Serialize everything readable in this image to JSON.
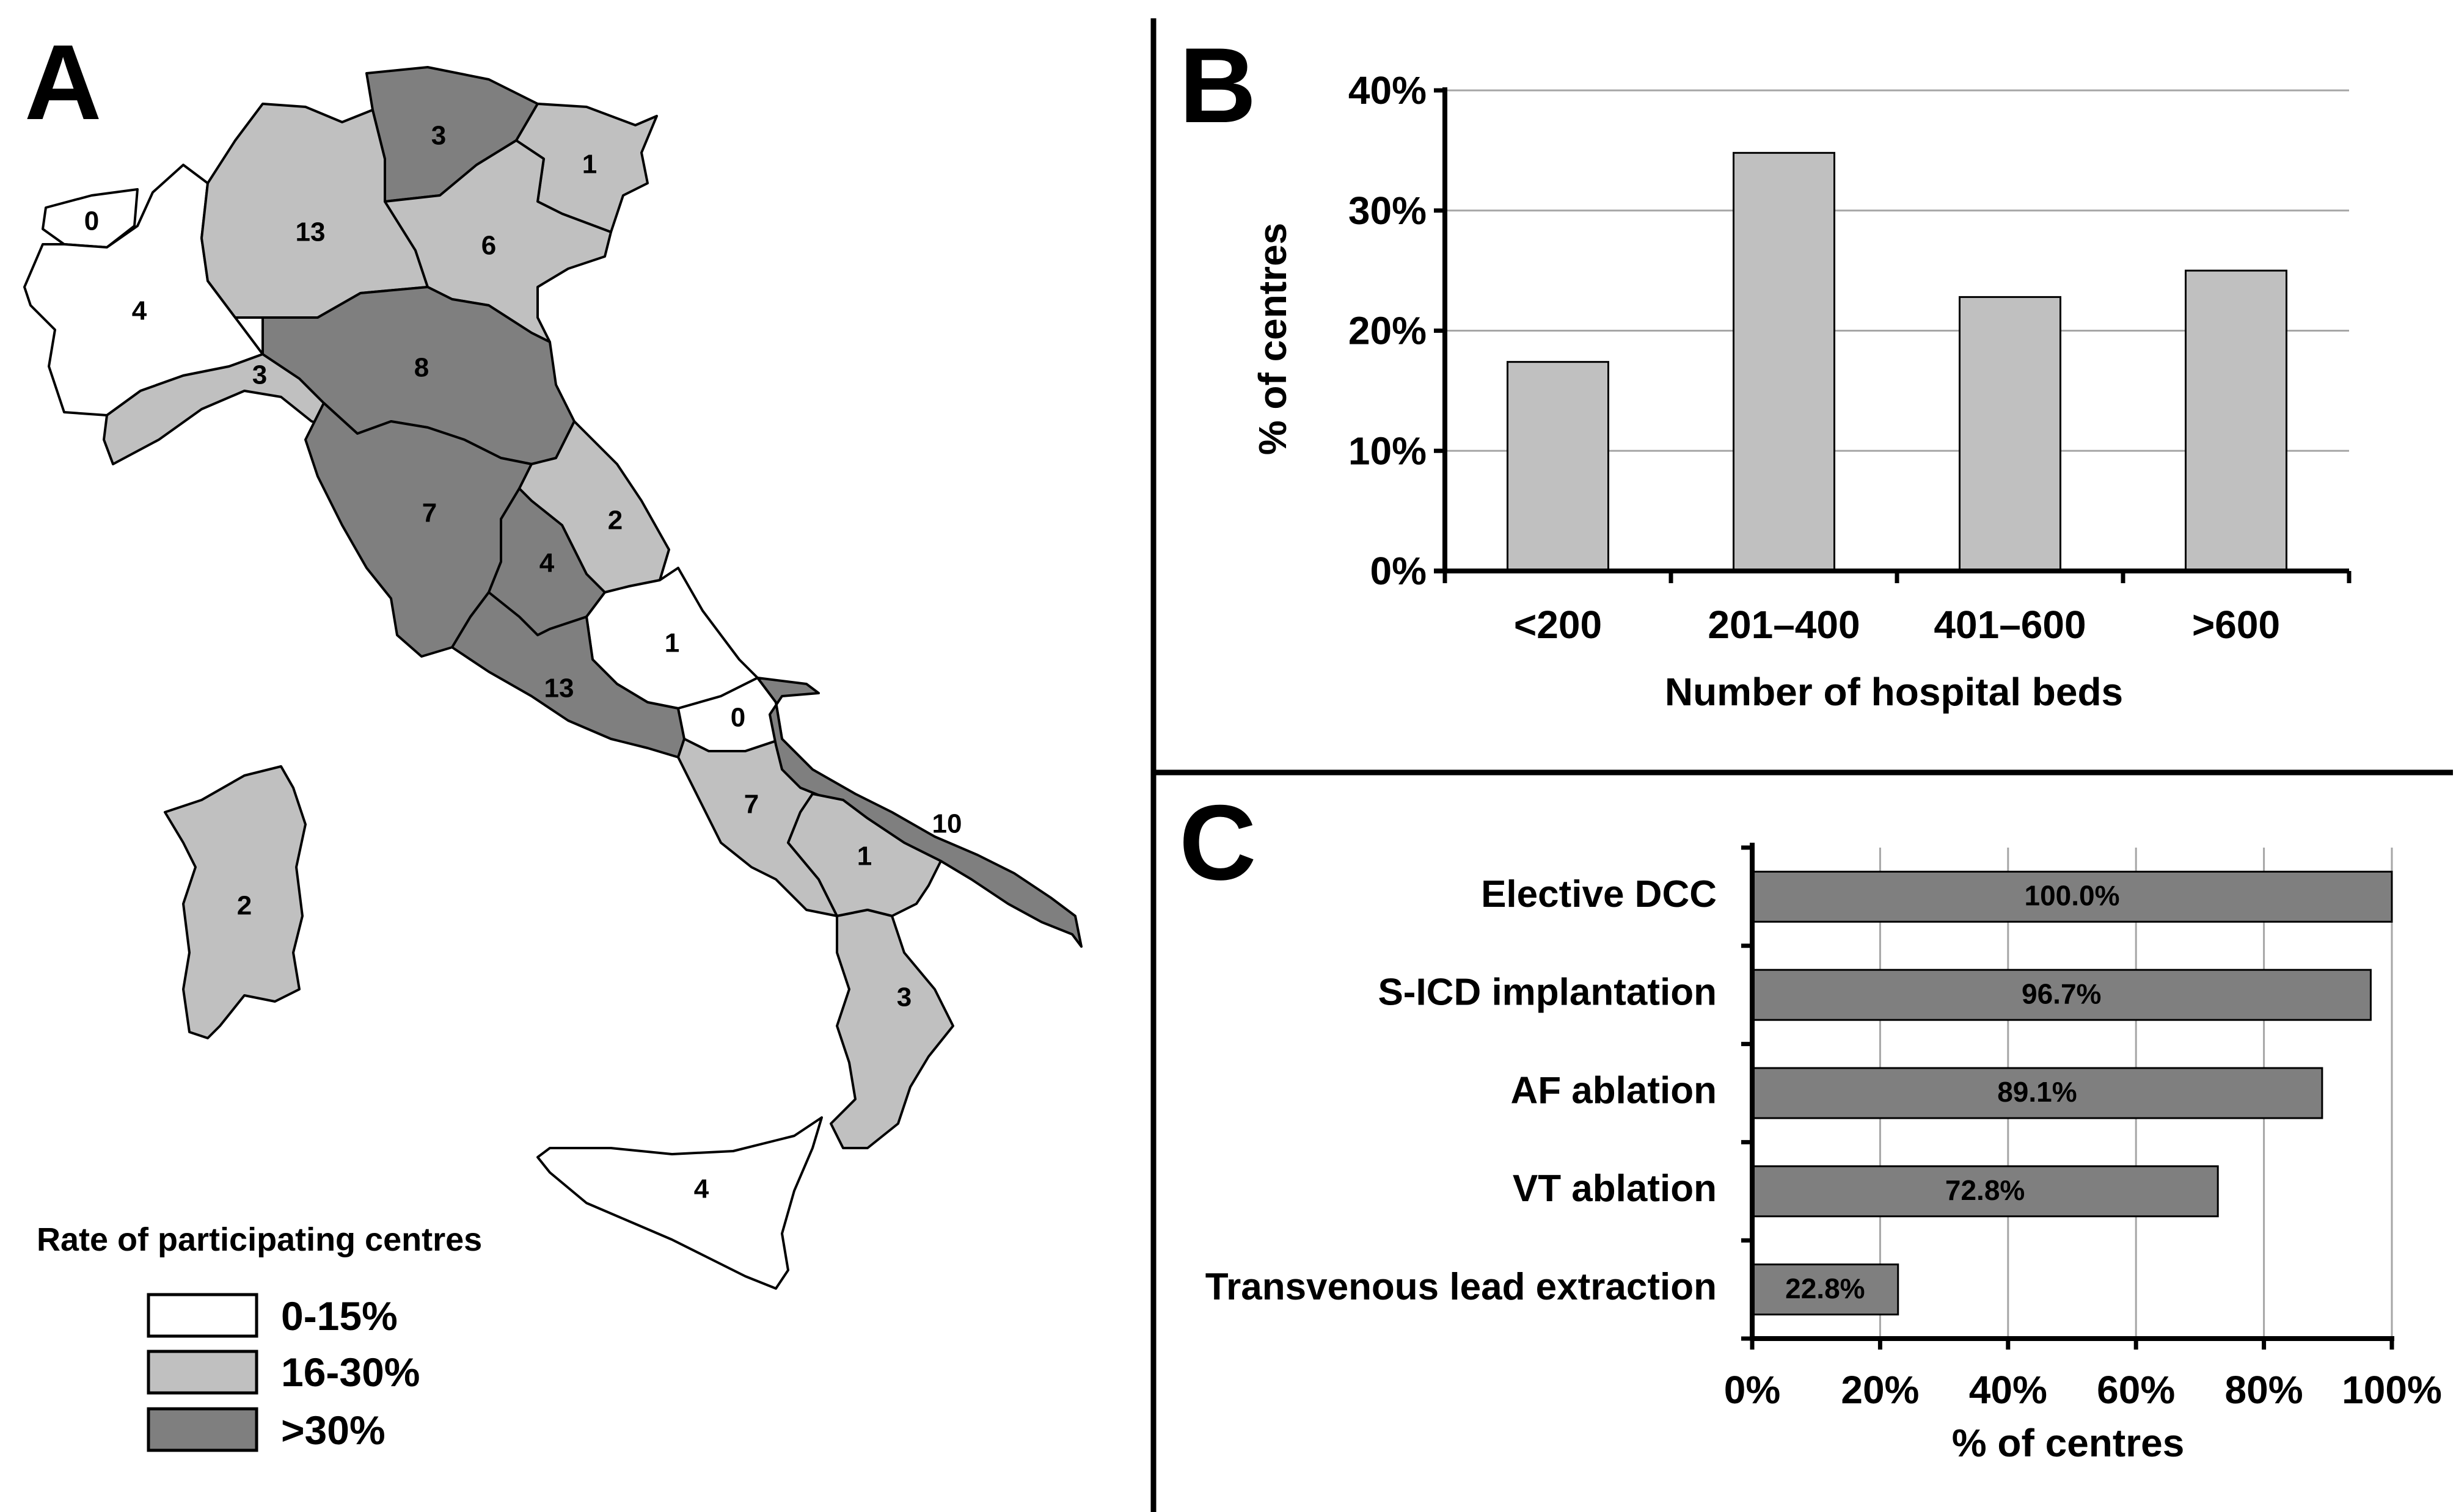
{
  "colors": {
    "low": "#ffffff",
    "mid": "#c0c0c0",
    "high": "#7f7f7f",
    "bar_b": "#c0c0c0",
    "bar_c": "#7f7f7f",
    "grid": "#a6a6a6"
  },
  "panel_a": {
    "letter": "A",
    "legend": {
      "title": "Rate of participating centres",
      "items": [
        {
          "label": "0-15%",
          "level": "low"
        },
        {
          "label": "16-30%",
          "level": "mid"
        },
        {
          "label": ">30%",
          "level": "high"
        }
      ]
    },
    "regions": [
      {
        "name": "Valle d'Aosta",
        "count": "0",
        "level": "low"
      },
      {
        "name": "Piemonte",
        "count": "4",
        "level": "low"
      },
      {
        "name": "Lombardia",
        "count": "13",
        "level": "mid"
      },
      {
        "name": "Trentino-Alto Adige",
        "count": "3",
        "level": "high"
      },
      {
        "name": "Friuli-Venezia Giulia",
        "count": "1",
        "level": "mid"
      },
      {
        "name": "Veneto",
        "count": "6",
        "level": "mid"
      },
      {
        "name": "Liguria",
        "count": "3",
        "level": "mid"
      },
      {
        "name": "Emilia-Romagna",
        "count": "8",
        "level": "high"
      },
      {
        "name": "Toscana",
        "count": "7",
        "level": "high"
      },
      {
        "name": "Marche",
        "count": "2",
        "level": "mid"
      },
      {
        "name": "Umbria",
        "count": "4",
        "level": "high"
      },
      {
        "name": "Abruzzo",
        "count": "1",
        "level": "low"
      },
      {
        "name": "Lazio",
        "count": "13",
        "level": "high"
      },
      {
        "name": "Molise",
        "count": "0",
        "level": "low"
      },
      {
        "name": "Campania",
        "count": "7",
        "level": "mid"
      },
      {
        "name": "Puglia",
        "count": "10",
        "level": "high"
      },
      {
        "name": "Basilicata",
        "count": "1",
        "level": "mid"
      },
      {
        "name": "Calabria",
        "count": "3",
        "level": "mid"
      },
      {
        "name": "Sicilia",
        "count": "4",
        "level": "low"
      },
      {
        "name": "Sardegna",
        "count": "2",
        "level": "mid"
      }
    ]
  },
  "chart_data": [
    {
      "panel": "B",
      "type": "bar",
      "categories": [
        "<200",
        "201–400",
        "401–600",
        ">600"
      ],
      "values": [
        17.4,
        34.8,
        22.8,
        25.0
      ],
      "xlabel": "Number of hospital beds",
      "ylabel": "% of centres",
      "ylim": [
        0,
        40
      ],
      "yticks": [
        "0%",
        "10%",
        "20%",
        "30%",
        "40%"
      ],
      "grid": true
    },
    {
      "panel": "C",
      "type": "bar",
      "orientation": "horizontal",
      "categories": [
        "Elective DCC",
        "S-ICD implantation",
        "AF ablation",
        "VT ablation",
        "Transvenous lead extraction"
      ],
      "values": [
        100.0,
        96.7,
        89.1,
        72.8,
        22.8
      ],
      "value_labels": [
        "100.0%",
        "96.7%",
        "89.1%",
        "72.8%",
        "22.8%"
      ],
      "xlabel": "% of centres",
      "xlim": [
        0,
        100
      ],
      "xticks": [
        "0%",
        "20%",
        "40%",
        "60%",
        "80%",
        "100%"
      ],
      "grid": true
    }
  ]
}
